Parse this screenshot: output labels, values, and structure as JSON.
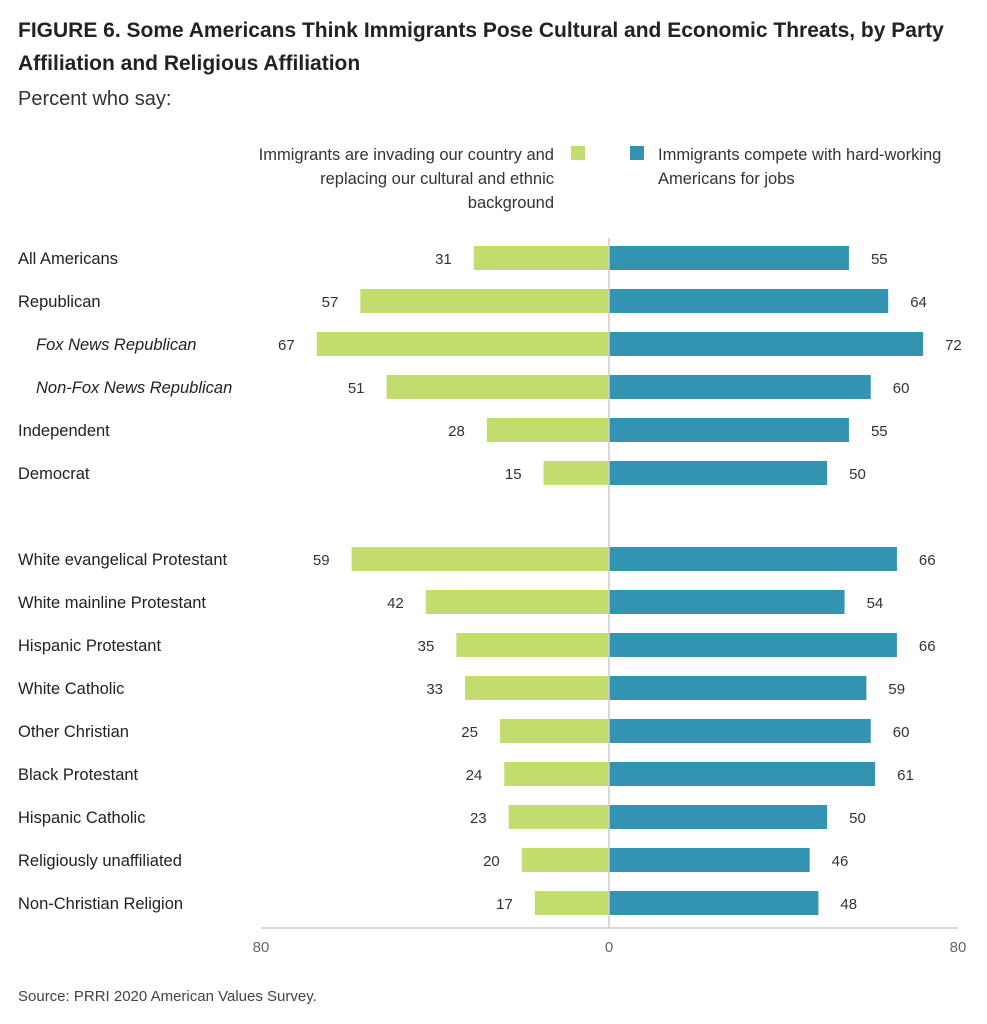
{
  "header": {
    "title": "FIGURE 6.  Some Americans Think Immigrants Pose Cultural and Economic Threats, by Party Affiliation and Religious Affiliation",
    "subtitle": "Percent who say:"
  },
  "legend": {
    "invading_label": "Immigrants are invading our country and replacing our cultural and ethnic background",
    "compete_label": "Immigrants compete with hard-working Americans for jobs"
  },
  "colors": {
    "invading": "#c2dc6d",
    "compete": "#3294b0",
    "axis": "#cccccc"
  },
  "source": "Source: PRRI 2020 American Values Survey.",
  "chart_data": {
    "type": "bar",
    "orientation": "horizontal-diverging",
    "categories": [
      "All Americans",
      "Republican",
      "Fox News Republican",
      "Non-Fox News Republican",
      "Independent",
      "Democrat",
      "White evangelical Protestant",
      "White mainline Protestant",
      "Hispanic Protestant",
      "White Catholic",
      "Other Christian",
      "Black Protestant",
      "Hispanic Catholic",
      "Religiously unaffiliated",
      "Non-Christian Religion"
    ],
    "italic_categories": [
      "Fox News Republican",
      "Non-Fox News Republican"
    ],
    "groups": [
      [
        "All Americans",
        "Republican",
        "Fox News Republican",
        "Non-Fox News Republican",
        "Independent",
        "Democrat"
      ],
      [
        "White evangelical Protestant",
        "White mainline Protestant",
        "Hispanic Protestant",
        "White Catholic",
        "Other Christian",
        "Black Protestant",
        "Hispanic Catholic",
        "Religiously unaffiliated",
        "Non-Christian Religion"
      ]
    ],
    "series": [
      {
        "name": "Immigrants are invading our country and replacing our cultural and ethnic background",
        "values": [
          31,
          57,
          67,
          51,
          28,
          15,
          59,
          42,
          35,
          33,
          25,
          24,
          23,
          20,
          17
        ]
      },
      {
        "name": "Immigrants compete with hard-working Americans for jobs",
        "values": [
          55,
          64,
          72,
          60,
          55,
          50,
          66,
          54,
          66,
          59,
          60,
          61,
          50,
          46,
          48
        ]
      }
    ],
    "xlim": [
      -80,
      80
    ],
    "xticks": [
      "80",
      "0",
      "80"
    ],
    "legend_position": "top"
  }
}
